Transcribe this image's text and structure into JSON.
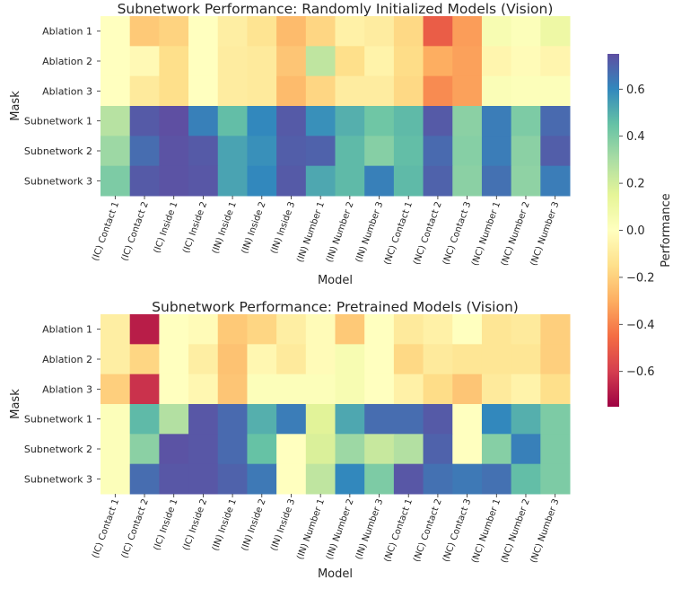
{
  "chart_data": [
    {
      "type": "heatmap",
      "title": "Subnetwork Performance: Randomly Initialized Models (Vision)",
      "xlabel": "Model",
      "ylabel": "Mask",
      "x": [
        "(IC) Contact 1",
        "(IC) Contact 2",
        "(IC) Inside 1",
        "(IC) Inside 2",
        "(IN) Inside 1",
        "(IN) Inside 2",
        "(IN) Inside 3",
        "(IN) Number 1",
        "(IN) Number 2",
        "(IN) Number 3",
        "(NC) Contact 1",
        "(NC) Contact 2",
        "(NC) Contact 3",
        "(NC) Number 1",
        "(NC) Number 2",
        "(NC) Number 3"
      ],
      "y": [
        "Ablation 1",
        "Ablation 2",
        "Ablation 3",
        "Subnetwork 1",
        "Subnetwork 2",
        "Subnetwork 3"
      ],
      "values": [
        [
          0.0,
          -0.22,
          -0.19,
          0.0,
          -0.08,
          -0.13,
          -0.26,
          -0.18,
          -0.07,
          -0.09,
          -0.17,
          -0.5,
          -0.34,
          0.05,
          0.02,
          0.1
        ],
        [
          0.0,
          -0.03,
          -0.15,
          0.0,
          -0.09,
          -0.1,
          -0.23,
          0.25,
          -0.15,
          -0.06,
          -0.16,
          -0.3,
          -0.33,
          -0.05,
          -0.02,
          -0.05
        ],
        [
          0.0,
          -0.1,
          -0.15,
          0.0,
          -0.09,
          -0.1,
          -0.26,
          -0.18,
          -0.09,
          -0.09,
          -0.17,
          -0.38,
          -0.33,
          0.03,
          0.02,
          0.02
        ],
        [
          0.27,
          0.72,
          0.75,
          0.62,
          0.46,
          0.6,
          0.72,
          0.58,
          0.5,
          0.43,
          0.47,
          0.72,
          0.37,
          0.63,
          0.4,
          0.68
        ],
        [
          0.33,
          0.67,
          0.74,
          0.72,
          0.53,
          0.58,
          0.71,
          0.7,
          0.47,
          0.38,
          0.46,
          0.68,
          0.38,
          0.63,
          0.37,
          0.71
        ],
        [
          0.4,
          0.72,
          0.74,
          0.73,
          0.53,
          0.6,
          0.72,
          0.52,
          0.47,
          0.62,
          0.47,
          0.7,
          0.37,
          0.66,
          0.36,
          0.63
        ]
      ],
      "colorbar": {
        "label": "Performance",
        "ticks": [
          "0.6",
          "0.4",
          "0.2",
          "0.0",
          "−0.2",
          "−0.4",
          "−0.6"
        ],
        "range": [
          -0.75,
          0.75
        ],
        "colormap": "Spectral"
      }
    },
    {
      "type": "heatmap",
      "title": "Subnetwork Performance: Pretrained Models (Vision)",
      "xlabel": "Model",
      "ylabel": "Mask",
      "x": [
        "(IC) Contact 1",
        "(IC) Contact 2",
        "(IC) Inside 1",
        "(IC) Inside 2",
        "(IN) Inside 1",
        "(IN) Inside 2",
        "(IN) Inside 3",
        "(IN) Number 1",
        "(IN) Number 2",
        "(IN) Number 3",
        "(NC) Contact 1",
        "(NC) Contact 2",
        "(NC) Contact 3",
        "(NC) Number 1",
        "(NC) Number 2",
        "(NC) Number 3"
      ],
      "y": [
        "Ablation 1",
        "Ablation 2",
        "Ablation 3",
        "Subnetwork 1",
        "Subnetwork 2",
        "Subnetwork 3"
      ],
      "values": [
        [
          -0.08,
          -0.68,
          0.0,
          -0.02,
          -0.22,
          -0.18,
          -0.08,
          -0.02,
          -0.22,
          0.0,
          -0.1,
          -0.07,
          0.0,
          -0.12,
          -0.1,
          -0.2
        ],
        [
          -0.08,
          -0.18,
          0.0,
          -0.08,
          -0.24,
          -0.04,
          -0.1,
          -0.02,
          0.05,
          0.0,
          -0.17,
          -0.1,
          -0.12,
          -0.12,
          -0.12,
          -0.2
        ],
        [
          -0.2,
          -0.63,
          0.0,
          -0.04,
          -0.23,
          0.02,
          0.02,
          0.02,
          0.05,
          0.0,
          -0.07,
          -0.16,
          -0.23,
          -0.1,
          -0.06,
          -0.15
        ],
        [
          0.02,
          0.47,
          0.28,
          0.73,
          0.68,
          0.5,
          0.63,
          0.16,
          0.52,
          0.67,
          0.67,
          0.72,
          0.0,
          0.6,
          0.5,
          0.4
        ],
        [
          0.02,
          0.37,
          0.74,
          0.73,
          0.68,
          0.45,
          0.0,
          0.18,
          0.33,
          0.23,
          0.28,
          0.7,
          0.0,
          0.38,
          0.62,
          0.4
        ],
        [
          0.02,
          0.67,
          0.73,
          0.73,
          0.7,
          0.64,
          0.0,
          0.25,
          0.6,
          0.4,
          0.73,
          0.66,
          0.64,
          0.66,
          0.46,
          0.4
        ]
      ]
    }
  ]
}
